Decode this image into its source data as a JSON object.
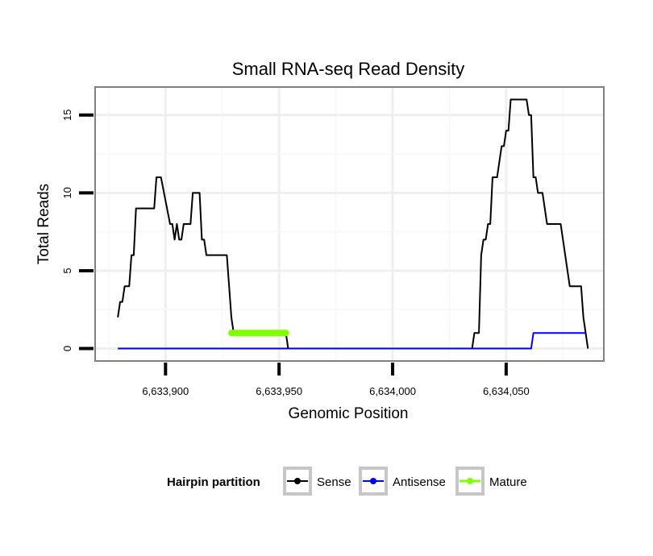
{
  "chart_data": {
    "type": "line",
    "title": "Small RNA-seq Read Density",
    "xlabel": "Genomic Position",
    "ylabel": "Total Reads",
    "xlim": [
      6633869,
      6634093
    ],
    "ylim": [
      -0.8,
      16.8
    ],
    "x_ticks": [
      6633900,
      6633950,
      6634000,
      6634050
    ],
    "x_tick_labels": [
      "6,633,900",
      "6,633,950",
      "6,634,000",
      "6,634,050"
    ],
    "y_ticks": [
      0,
      5,
      10,
      15
    ],
    "y_tick_labels": [
      "0",
      "5",
      "10",
      "15"
    ],
    "grid": true,
    "legend": {
      "title": "Hairpin partition",
      "position": "bottom",
      "entries": [
        "Sense",
        "Antisense",
        "Mature"
      ]
    },
    "series": [
      {
        "name": "Sense",
        "color": "#000000",
        "points": [
          [
            6633879,
            2
          ],
          [
            6633880,
            3
          ],
          [
            6633881,
            3
          ],
          [
            6633882,
            4
          ],
          [
            6633884,
            4
          ],
          [
            6633885,
            6
          ],
          [
            6633886,
            6
          ],
          [
            6633887,
            9
          ],
          [
            6633895,
            9
          ],
          [
            6633896,
            11
          ],
          [
            6633898,
            11
          ],
          [
            6633902,
            8
          ],
          [
            6633903,
            8
          ],
          [
            6633904,
            7
          ],
          [
            6633905,
            8
          ],
          [
            6633906,
            7
          ],
          [
            6633907,
            7
          ],
          [
            6633908,
            8
          ],
          [
            6633911,
            8
          ],
          [
            6633912,
            10
          ],
          [
            6633915,
            10
          ],
          [
            6633916,
            7
          ],
          [
            6633917,
            7
          ],
          [
            6633918,
            6
          ],
          [
            6633927,
            6
          ],
          [
            6633929,
            2
          ],
          [
            6633930,
            1
          ],
          [
            6633953,
            1
          ],
          [
            6633954,
            0
          ],
          [
            6634035,
            0
          ],
          [
            6634036,
            1
          ],
          [
            6634038,
            1
          ],
          [
            6634039,
            6
          ],
          [
            6634040,
            7
          ],
          [
            6634041,
            7
          ],
          [
            6634042,
            8
          ],
          [
            6634043,
            8
          ],
          [
            6634044,
            11
          ],
          [
            6634046,
            11
          ],
          [
            6634048,
            13
          ],
          [
            6634049,
            13
          ],
          [
            6634050,
            14
          ],
          [
            6634051,
            14
          ],
          [
            6634052,
            16
          ],
          [
            6634059,
            16
          ],
          [
            6634060,
            15
          ],
          [
            6634061,
            15
          ],
          [
            6634062,
            11
          ],
          [
            6634063,
            11
          ],
          [
            6634064,
            10
          ],
          [
            6634066,
            10
          ],
          [
            6634068,
            8
          ],
          [
            6634074,
            8
          ],
          [
            6634076,
            6
          ],
          [
            6634078,
            4
          ],
          [
            6634083,
            4
          ],
          [
            6634084,
            2
          ],
          [
            6634086,
            0
          ]
        ]
      },
      {
        "name": "Antisense",
        "color": "#0000ff",
        "points": [
          [
            6633879,
            0
          ],
          [
            6634061,
            0
          ],
          [
            6634062,
            1
          ],
          [
            6634085,
            1
          ]
        ]
      },
      {
        "name": "Mature",
        "color": "#7fff00",
        "points": [
          [
            6633929,
            1
          ],
          [
            6633953,
            1
          ]
        ]
      }
    ]
  }
}
